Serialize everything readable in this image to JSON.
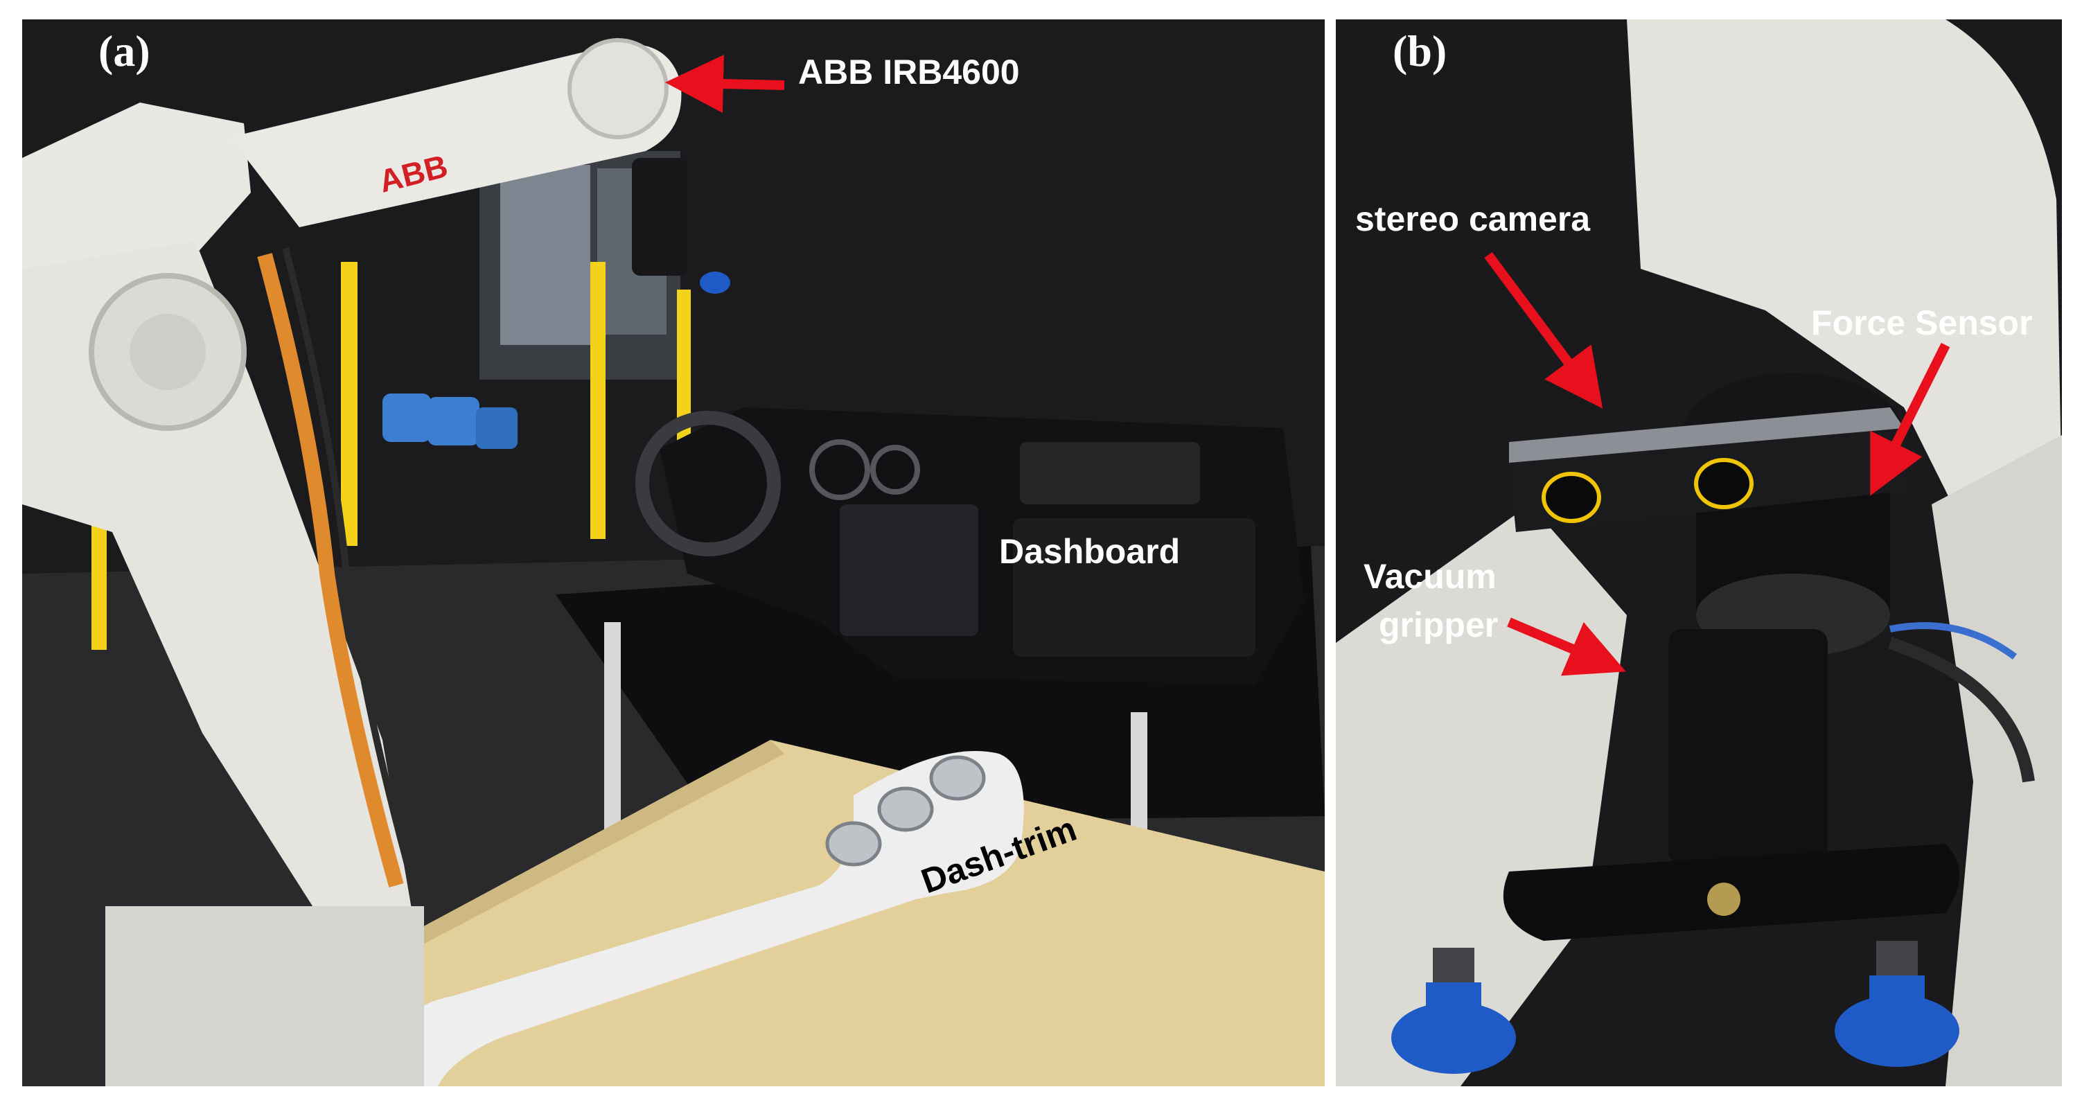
{
  "panel_a": {
    "letter": "(a)",
    "labels": {
      "robot": "ABB IRB4600",
      "dashboard": "Dashboard",
      "dash_trim": "Dash-trim"
    }
  },
  "panel_b": {
    "letter": "(b)",
    "labels": {
      "stereo_camera": "stereo camera",
      "force_sensor": "Force Sensor",
      "vacuum_gripper_line1": "Vacuum",
      "vacuum_gripper_line2": "gripper"
    }
  },
  "colors": {
    "arrow": "#e8101c",
    "background_dark": "#1b1b1d",
    "robot_white": "#e9e7e2",
    "table_wood": "#e2cf99",
    "gripper_blue": "#1f5bc6",
    "safety_yellow": "#f4d21a"
  },
  "icons": [
    "arrow-icon"
  ]
}
